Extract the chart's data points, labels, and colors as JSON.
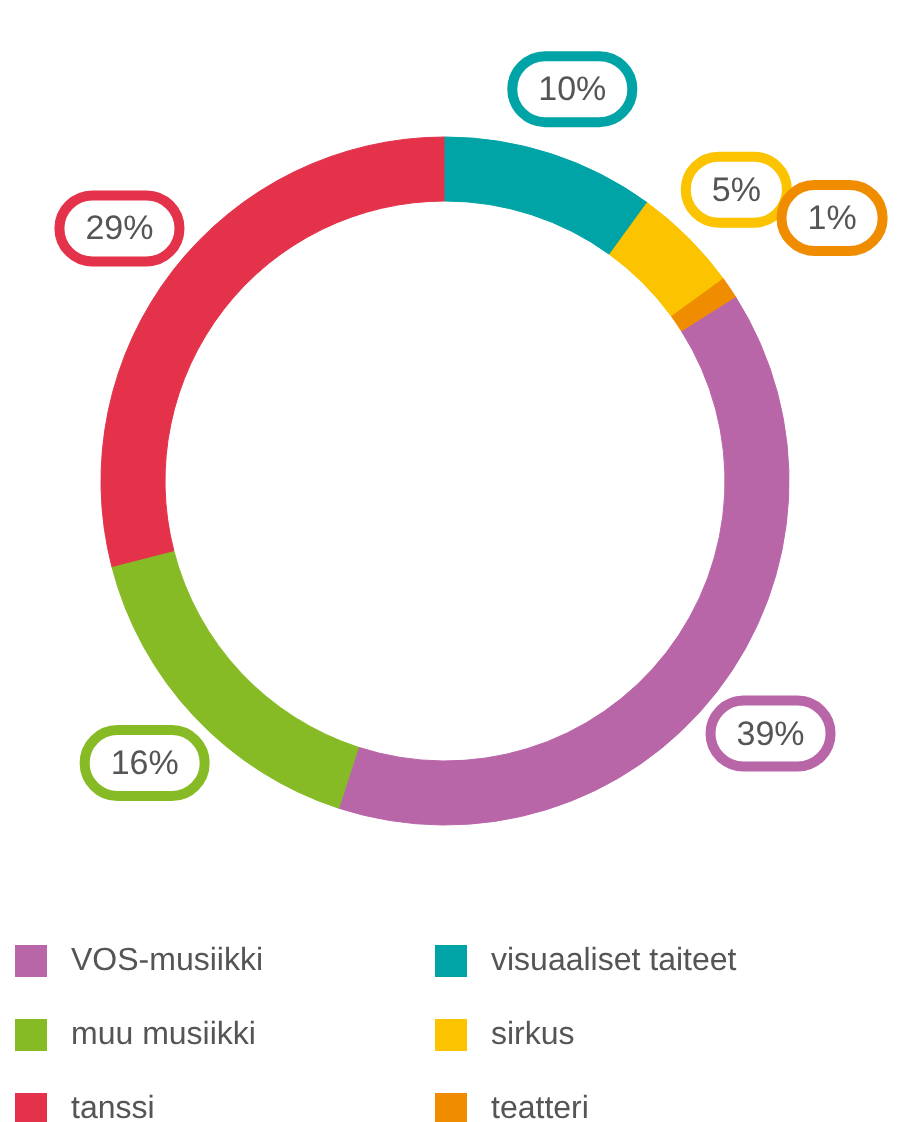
{
  "chart_data": {
    "type": "donut",
    "categories": [
      "VOS-musiikki",
      "muu musiikki",
      "tanssi",
      "visuaaliset taiteet",
      "sirkus",
      "teatteri"
    ],
    "values": [
      39,
      16,
      29,
      10,
      5,
      1
    ],
    "colors": [
      "#b966a8",
      "#86bb25",
      "#e3324a",
      "#00a4a6",
      "#fbc300",
      "#f08c00"
    ],
    "data_labels": true,
    "value_labels": [
      "39%",
      "16%",
      "29%",
      "10%",
      "5%",
      "1%"
    ],
    "legend": "bottom"
  }
}
